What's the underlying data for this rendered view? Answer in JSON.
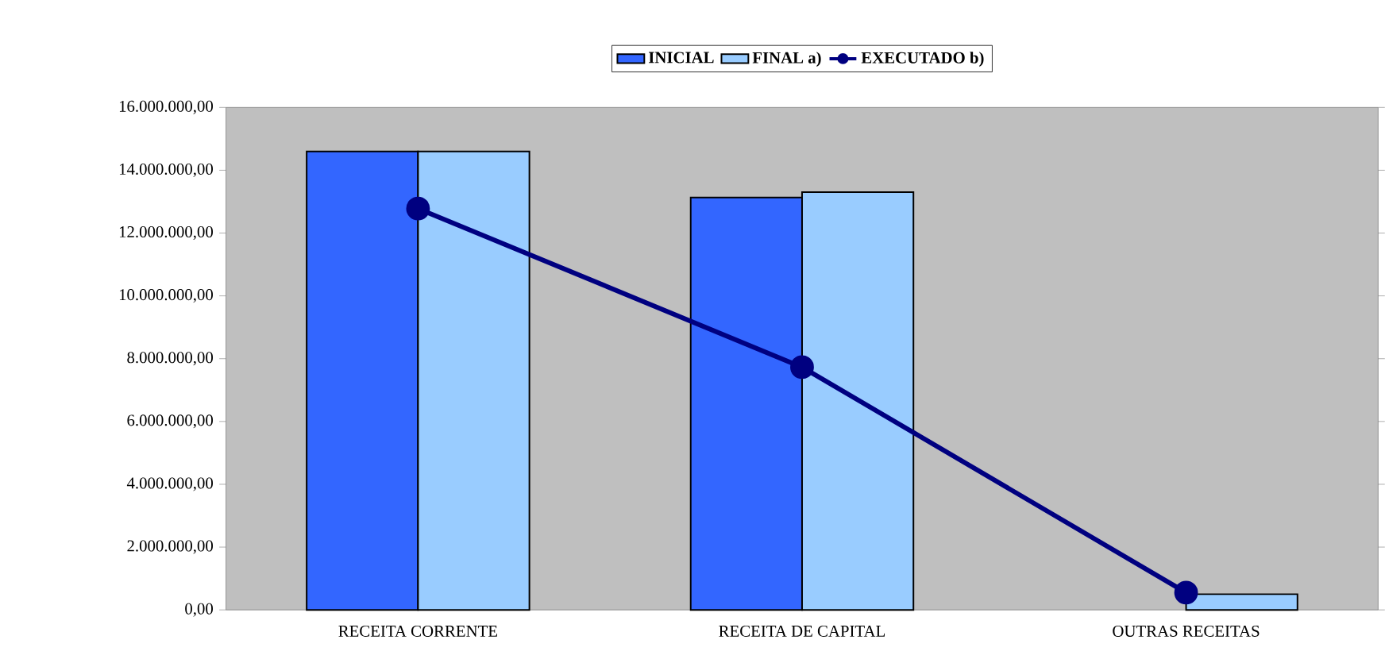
{
  "chart_data": {
    "type": "bar",
    "categories": [
      "RECEITA CORRENTE",
      "RECEITA DE CAPITAL",
      "OUTRAS RECEITAS"
    ],
    "series": [
      {
        "name": "INICIAL",
        "color": "#3366ff",
        "values": [
          14600000,
          13130000,
          null
        ]
      },
      {
        "name": "FINAL a)",
        "color": "#99ccff",
        "values": [
          14600000,
          13300000,
          500000
        ]
      },
      {
        "name": "EXECUTADO b)",
        "type": "line",
        "color": "#000080",
        "marker": "circle",
        "values": [
          12780000,
          7730000,
          550000
        ]
      }
    ],
    "ylim": [
      0,
      16000000
    ],
    "yticks": [
      {
        "value": 0,
        "label": "0,00"
      },
      {
        "value": 2000000,
        "label": "2.000.000,00"
      },
      {
        "value": 4000000,
        "label": "4.000.000,00"
      },
      {
        "value": 6000000,
        "label": "6.000.000,00"
      },
      {
        "value": 8000000,
        "label": "8.000.000,00"
      },
      {
        "value": 10000000,
        "label": "10.000.000,00"
      },
      {
        "value": 12000000,
        "label": "12.000.000,00"
      },
      {
        "value": 14000000,
        "label": "14.000.000,00"
      },
      {
        "value": 16000000,
        "label": "16.000.000,00"
      }
    ],
    "grid": false,
    "legend": "top"
  }
}
